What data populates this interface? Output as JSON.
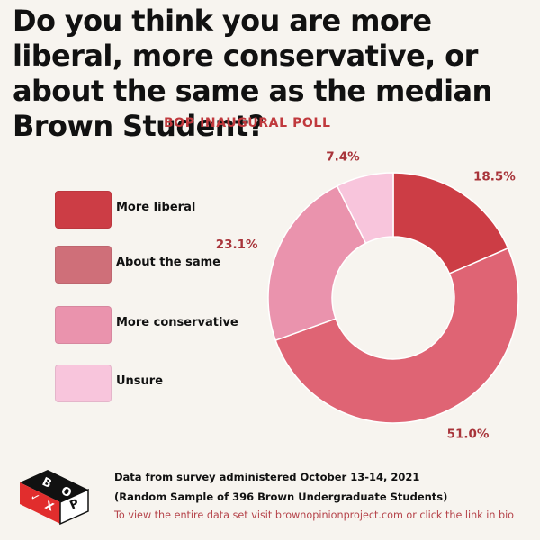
{
  "title": "Do you think you are more liberal, more conservative, or about the same as the median Brown Student?",
  "subtitle": "BOP INAUGURAL POLL",
  "chart_data": {
    "type": "pie",
    "variant": "donut",
    "categories": [
      "More liberal",
      "About the same",
      "More conservative",
      "Unsure"
    ],
    "values": [
      18.5,
      51.0,
      23.1,
      7.4
    ],
    "labels": [
      "18.5%",
      "51.0%",
      "23.1%",
      "7.4%"
    ],
    "colors": [
      "#cc3d45",
      "#df6474",
      "#ea93ad",
      "#f8c5dc"
    ],
    "legend_position": "left",
    "title": "Do you think you are more liberal, more conservative, or about the same as the median Brown Student?"
  },
  "legend": {
    "items": [
      {
        "label": "More liberal",
        "color": "#cc3d45"
      },
      {
        "label": "About the same",
        "color": "#cf6f79"
      },
      {
        "label": "More conservative",
        "color": "#ea93ad"
      },
      {
        "label": "Unsure",
        "color": "#f8c5dc"
      }
    ]
  },
  "logo": {
    "letters": [
      "B",
      "O",
      "P",
      "✓",
      "X"
    ],
    "icon": "bop-logo-icon"
  },
  "footer": {
    "line1": "Data from survey administered October 13-14, 2021",
    "line2": "(Random Sample of 396 Brown Undergraduate Students)",
    "line3": "To view the entire data set visit brownopinionproject.com or click the link in bio"
  }
}
